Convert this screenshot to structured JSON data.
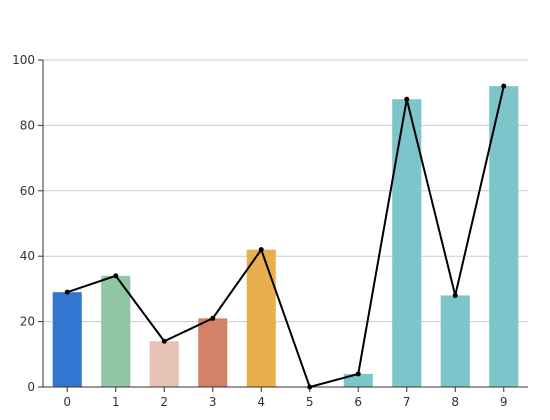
{
  "chart_data": {
    "type": "bar",
    "categories": [
      "0",
      "1",
      "2",
      "3",
      "4",
      "5",
      "6",
      "7",
      "8",
      "9"
    ],
    "bar_values": [
      29,
      34,
      14,
      21,
      42,
      0,
      4,
      88,
      28,
      92
    ],
    "line_values": [
      29,
      34,
      14,
      21,
      42,
      0,
      4,
      88,
      28,
      92
    ],
    "bar_colors": [
      "#3276d2",
      "#90c6a4",
      "#e7c3b4",
      "#d38268",
      "#e8b04d",
      "#7dc4cb",
      "#7dc4cb",
      "#7dc4cb",
      "#7dc4cb",
      "#7dc4cb"
    ],
    "line_color": "#000000",
    "ylim": [
      0,
      100
    ],
    "yticks": [
      0,
      20,
      40,
      60,
      80,
      100
    ],
    "grid": true,
    "title": "",
    "xlabel": "",
    "ylabel": ""
  }
}
